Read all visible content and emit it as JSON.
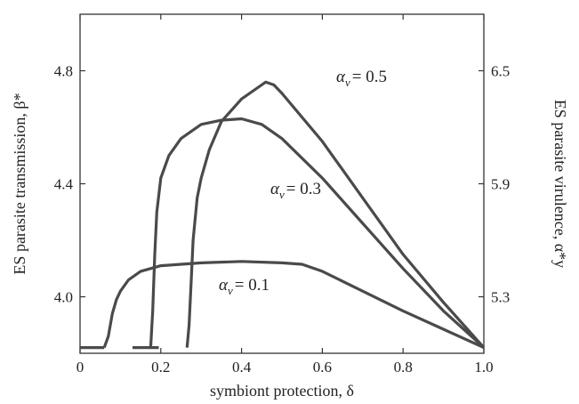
{
  "chart_data": {
    "type": "line",
    "xlabel": "symbiont protection, δ",
    "ylabel_left": "ES parasite transmission, β*",
    "ylabel_right": "ES parasite virulence, α*y",
    "xlim": [
      0,
      1
    ],
    "ylim_left": [
      3.8,
      5.0
    ],
    "x_ticks": [
      "0",
      "0.2",
      "0.4",
      "0.6",
      "0.8",
      "1.0"
    ],
    "y_ticks_left": [
      "4.0",
      "4.4",
      "4.8"
    ],
    "y_ticks_right": [
      "5.3",
      "5.9",
      "6.5"
    ],
    "y_ticks_right_positions_left_units": [
      4.0,
      4.4,
      4.8
    ],
    "grid": false,
    "line_color": "#4a4a4a",
    "series": [
      {
        "name": "αv = 0.1",
        "label_alpha": "α",
        "label_sub": "v",
        "label_value": "= 0.1",
        "segments": [
          {
            "x": [
              0,
              0.06
            ],
            "y": [
              3.82,
              3.82
            ]
          },
          {
            "x": [
              0.06,
              0.07,
              0.08,
              0.09,
              0.1,
              0.12,
              0.15,
              0.2,
              0.3,
              0.4,
              0.5,
              0.55,
              0.6,
              0.7,
              0.8,
              0.9,
              1.0
            ],
            "y": [
              3.82,
              3.86,
              3.94,
              3.99,
              4.02,
              4.06,
              4.09,
              4.11,
              4.12,
              4.125,
              4.12,
              4.115,
              4.09,
              4.02,
              3.95,
              3.885,
              3.82
            ]
          }
        ]
      },
      {
        "name": "αv = 0.3",
        "label_alpha": "α",
        "label_sub": "v",
        "label_value": "= 0.3",
        "segments": [
          {
            "x": [
              0.13,
              0.195
            ],
            "y": [
              3.82,
              3.82
            ]
          },
          {
            "x": [
              0.175,
              0.18,
              0.185,
              0.19,
              0.2,
              0.22,
              0.25,
              0.3,
              0.35,
              0.4,
              0.45,
              0.5,
              0.6,
              0.7,
              0.8,
              0.9,
              1.0
            ],
            "y": [
              3.82,
              3.95,
              4.15,
              4.3,
              4.42,
              4.5,
              4.56,
              4.61,
              4.625,
              4.63,
              4.61,
              4.56,
              4.42,
              4.26,
              4.1,
              3.95,
              3.82
            ]
          }
        ]
      },
      {
        "name": "αv = 0.5",
        "label_alpha": "α",
        "label_sub": "v",
        "label_value": "= 0.5",
        "segments": [
          {
            "x": [
              0.265,
              0.27,
              0.275,
              0.28,
              0.29,
              0.3,
              0.32,
              0.35,
              0.4,
              0.44,
              0.46,
              0.48,
              0.5,
              0.6,
              0.7,
              0.8,
              0.9,
              1.0
            ],
            "y": [
              3.82,
              3.9,
              4.05,
              4.2,
              4.35,
              4.42,
              4.52,
              4.62,
              4.7,
              4.74,
              4.76,
              4.75,
              4.72,
              4.55,
              4.35,
              4.15,
              3.98,
              3.82
            ]
          }
        ]
      }
    ]
  }
}
